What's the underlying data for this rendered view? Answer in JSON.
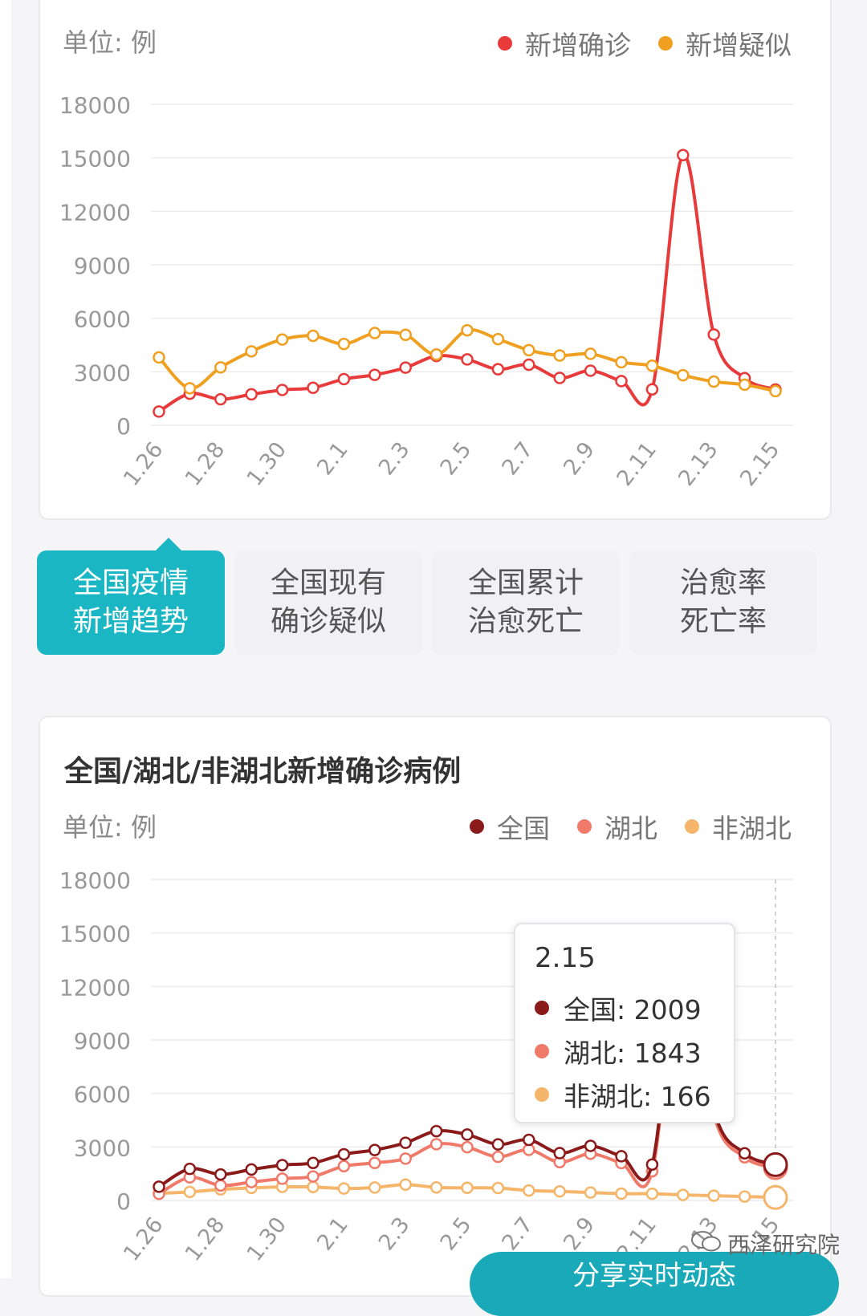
{
  "chart_data": [
    {
      "type": "line",
      "title": "",
      "unit_label": "单位: 例",
      "x": [
        "1.26",
        "1.27",
        "1.28",
        "1.29",
        "1.30",
        "1.31",
        "2.1",
        "2.2",
        "2.3",
        "2.4",
        "2.5",
        "2.6",
        "2.7",
        "2.8",
        "2.9",
        "2.10",
        "2.11",
        "2.12",
        "2.13",
        "2.14",
        "2.15"
      ],
      "x_tick_labels": [
        "1.26",
        "1.28",
        "1.30",
        "2.1",
        "2.3",
        "2.5",
        "2.7",
        "2.9",
        "2.11",
        "2.13",
        "2.15"
      ],
      "y_ticks": [
        0,
        3000,
        6000,
        9000,
        12000,
        15000,
        18000
      ],
      "ylim": [
        0,
        18000
      ],
      "grid": true,
      "legend_position": "top-right",
      "series": [
        {
          "name": "新增确诊",
          "color": "#e83a3a",
          "values": [
            769,
            1771,
            1459,
            1737,
            1982,
            2102,
            2590,
            2829,
            3235,
            3887,
            3694,
            3143,
            3399,
            2656,
            3062,
            2478,
            2015,
            15152,
            5090,
            2641,
            2009
          ]
        },
        {
          "name": "新增疑似",
          "color": "#f0a020",
          "values": [
            3806,
            2077,
            3248,
            4148,
            4812,
            5019,
            4562,
            5173,
            5072,
            3971,
            5328,
            4833,
            4214,
            3916,
            4008,
            3536,
            3342,
            2807,
            2450,
            2277,
            1918
          ]
        }
      ]
    },
    {
      "type": "line",
      "title": "全国/湖北/非湖北新增确诊病例",
      "unit_label": "单位: 例",
      "x": [
        "1.26",
        "1.27",
        "1.28",
        "1.29",
        "1.30",
        "1.31",
        "2.1",
        "2.2",
        "2.3",
        "2.4",
        "2.5",
        "2.6",
        "2.7",
        "2.8",
        "2.9",
        "2.10",
        "2.11",
        "2.12",
        "2.13",
        "2.14",
        "2.15"
      ],
      "x_tick_labels": [
        "1.26",
        "1.28",
        "1.30",
        "2.1",
        "2.3",
        "2.5",
        "2.7",
        "2.9",
        "2.11",
        "2.13",
        "2.15"
      ],
      "y_ticks": [
        0,
        3000,
        6000,
        9000,
        12000,
        15000,
        18000
      ],
      "ylim": [
        0,
        18000
      ],
      "grid": true,
      "legend_position": "top-right",
      "series": [
        {
          "name": "全国",
          "color": "#8b1a1a",
          "values": [
            769,
            1771,
            1459,
            1737,
            1982,
            2102,
            2590,
            2829,
            3235,
            3887,
            3694,
            3143,
            3399,
            2656,
            3062,
            2478,
            2015,
            15152,
            5090,
            2641,
            2009
          ]
        },
        {
          "name": "湖北",
          "color": "#f07a6a",
          "values": [
            371,
            1291,
            840,
            1032,
            1220,
            1347,
            1921,
            2103,
            2345,
            3156,
            2987,
            2447,
            2841,
            2147,
            2618,
            2097,
            1638,
            14840,
            4823,
            2420,
            1843
          ]
        },
        {
          "name": "非湖北",
          "color": "#f5b56a",
          "values": [
            398,
            480,
            619,
            705,
            762,
            755,
            669,
            726,
            890,
            731,
            707,
            696,
            558,
            509,
            444,
            381,
            377,
            312,
            267,
            221,
            166
          ]
        }
      ],
      "tooltip": {
        "date": "2.15",
        "rows": [
          {
            "label": "全国: 2009",
            "color": "#8b1a1a"
          },
          {
            "label": "湖北: 1843",
            "color": "#f07a6a"
          },
          {
            "label": "非湖北: 166",
            "color": "#f5b56a"
          }
        ]
      }
    }
  ],
  "tabs": [
    {
      "line1": "全国疫情",
      "line2": "新增趋势",
      "active": true
    },
    {
      "line1": "全国现有",
      "line2": "确诊疑似",
      "active": false
    },
    {
      "line1": "全国累计",
      "line2": "治愈死亡",
      "active": false
    },
    {
      "line1": "治愈率",
      "line2": "死亡率",
      "active": false
    }
  ],
  "watermark": "西泽研究院",
  "share_button": "分享实时动态"
}
